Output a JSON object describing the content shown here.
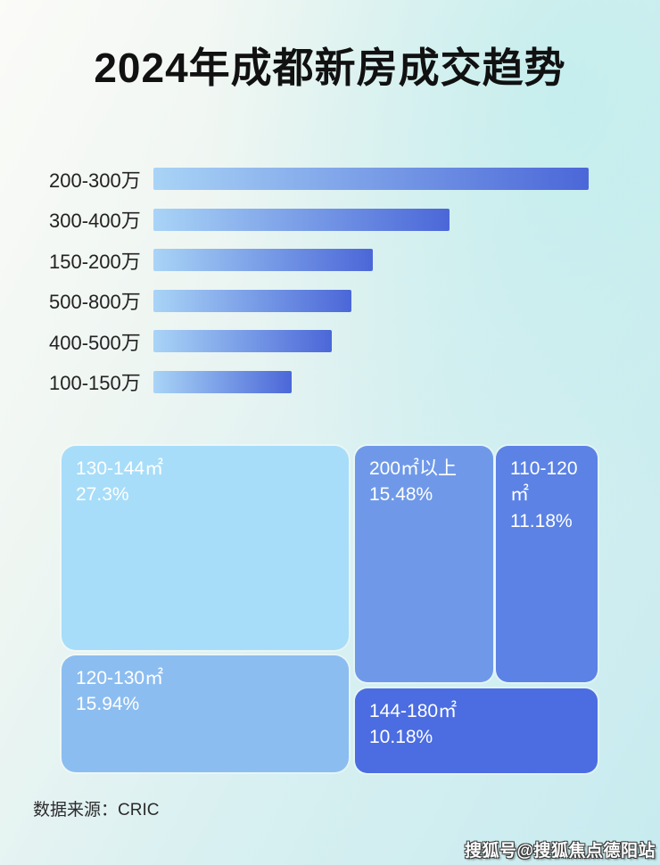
{
  "title": "2024年成都新房成交趋势",
  "chart_data": [
    {
      "type": "bar",
      "orientation": "horizontal",
      "categories": [
        "200-300万",
        "300-400万",
        "150-200万",
        "500-800万",
        "400-500万",
        "100-150万"
      ],
      "values_relative_pct": [
        100,
        68,
        50.5,
        45.4,
        41,
        31.8
      ],
      "value_labels_shown": false,
      "note": "bar lengths estimated from pixels; no numeric axis or data labels are shown in the image",
      "bar_gradient_start": "#a9d4f6",
      "bar_gradient_end": "#4b67d8",
      "grid": false,
      "legend": false
    },
    {
      "type": "treemap",
      "items": [
        {
          "label": "130-144㎡",
          "value": 27.3,
          "pct_label": "27.3%",
          "color": "#a7ddf9"
        },
        {
          "label": "120-130㎡",
          "value": 15.94,
          "pct_label": "15.94%",
          "color": "#8cbdf0"
        },
        {
          "label": "200㎡以上",
          "value": 15.48,
          "pct_label": "15.48%",
          "color": "#6f99e8"
        },
        {
          "label": "110-120㎡",
          "value": 11.18,
          "pct_label": "11.18%",
          "color": "#5b82e4"
        },
        {
          "label": "144-180㎡",
          "value": 10.18,
          "pct_label": "10.18%",
          "color": "#4b6de1"
        }
      ],
      "text_color": "#ffffff",
      "legend": false
    }
  ],
  "footer": {
    "source": "数据来源：CRIC"
  },
  "watermark": {
    "text": "搜狐号@搜狐焦点德阳站",
    "color": "#ffffff"
  }
}
